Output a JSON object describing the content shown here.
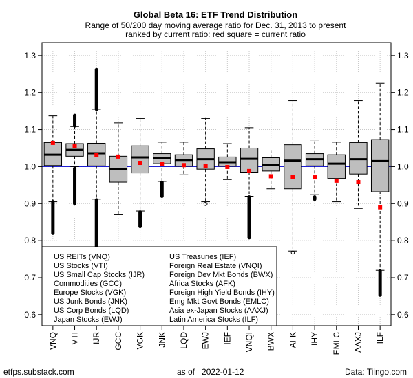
{
  "chart_data": {
    "type": "box",
    "title": "Global Beta 16: ETF Trend Distribution",
    "subtitle_lines": [
      "Range of 50/200 day moving average ratio for Dec. 31, 2013 to present",
      "ranked by current ratio: red square = current ratio"
    ],
    "categories": [
      "VNQ",
      "VTI",
      "IJR",
      "GCC",
      "VGK",
      "JNK",
      "LQD",
      "EWJ",
      "IEF",
      "VNQI",
      "BWX",
      "AFK",
      "IHY",
      "EMLC",
      "AAXJ",
      "ILF"
    ],
    "boxes": [
      {
        "whisker_low": 0.905,
        "q1": 1.003,
        "median": 1.032,
        "q3": 1.065,
        "whisker_high": 1.137,
        "outliers_low": [
          0.82,
          0.905
        ],
        "outliers_high": [],
        "current": 1.064
      },
      {
        "whisker_low": 1.0,
        "q1": 1.028,
        "median": 1.045,
        "q3": 1.062,
        "whisker_high": 1.108,
        "outliers_low": [
          0.9,
          0.995
        ],
        "outliers_high": [
          1.11,
          1.138
        ],
        "current": 1.055
      },
      {
        "whisker_low": 0.912,
        "q1": 1.002,
        "median": 1.036,
        "q3": 1.063,
        "whisker_high": 1.155,
        "outliers_low": [
          0.78,
          0.91
        ],
        "outliers_high": [
          1.155,
          1.262
        ],
        "current": 1.031
      },
      {
        "whisker_low": 0.87,
        "q1": 0.958,
        "median": 0.993,
        "q3": 1.028,
        "whisker_high": 1.118,
        "outliers_low": [],
        "outliers_high": [],
        "current": 1.027
      },
      {
        "whisker_low": 0.88,
        "q1": 0.983,
        "median": 1.025,
        "q3": 1.056,
        "whisker_high": 1.13,
        "outliers_low": [
          0.838,
          0.877
        ],
        "outliers_high": [],
        "current": 1.01
      },
      {
        "whisker_low": 0.96,
        "q1": 1.008,
        "median": 1.023,
        "q3": 1.035,
        "whisker_high": 1.066,
        "outliers_low": [
          0.92,
          0.957
        ],
        "outliers_high": [],
        "current": 1.007
      },
      {
        "whisker_low": 0.978,
        "q1": 1.001,
        "median": 1.018,
        "q3": 1.032,
        "whisker_high": 1.066,
        "outliers_low": [],
        "outliers_high": [],
        "current": 1.004
      },
      {
        "whisker_low": 0.905,
        "q1": 0.993,
        "median": 1.02,
        "q3": 1.048,
        "whisker_high": 1.13,
        "outliers_low": [
          0.899
        ],
        "outliers_high": [],
        "current": 1.001
      },
      {
        "whisker_low": 0.965,
        "q1": 1.001,
        "median": 1.012,
        "q3": 1.026,
        "whisker_high": 1.062,
        "outliers_low": [],
        "outliers_high": [],
        "current": 0.999
      },
      {
        "whisker_low": 0.92,
        "q1": 0.985,
        "median": 1.021,
        "q3": 1.05,
        "whisker_high": 1.105,
        "outliers_low": [
          0.808,
          0.918
        ],
        "outliers_high": [],
        "current": 0.988
      },
      {
        "whisker_low": 0.94,
        "q1": 0.988,
        "median": 1.005,
        "q3": 1.024,
        "whisker_high": 1.05,
        "outliers_low": [],
        "outliers_high": [],
        "current": 0.974
      },
      {
        "whisker_low": 0.772,
        "q1": 0.94,
        "median": 1.016,
        "q3": 1.059,
        "whisker_high": 1.178,
        "outliers_low": [
          0.768
        ],
        "outliers_high": [],
        "current": 0.972
      },
      {
        "whisker_low": 0.925,
        "q1": 1.002,
        "median": 1.02,
        "q3": 1.035,
        "whisker_high": 1.072,
        "outliers_low": [
          0.912,
          0.918
        ],
        "outliers_high": [],
        "current": 0.971
      },
      {
        "whisker_low": 0.905,
        "q1": 0.968,
        "median": 1.008,
        "q3": 1.032,
        "whisker_high": 1.066,
        "outliers_low": [],
        "outliers_high": [],
        "current": 0.962
      },
      {
        "whisker_low": 0.887,
        "q1": 0.98,
        "median": 1.02,
        "q3": 1.065,
        "whisker_high": 1.178,
        "outliers_low": [],
        "outliers_high": [],
        "current": 0.958
      },
      {
        "whisker_low": 0.72,
        "q1": 0.932,
        "median": 1.015,
        "q3": 1.073,
        "whisker_high": 1.225,
        "outliers_low": [
          0.653,
          0.718
        ],
        "outliers_high": [],
        "current": 0.89
      }
    ],
    "y_ticks": [
      0.6,
      0.7,
      0.8,
      0.9,
      1.0,
      1.1,
      1.2,
      1.3
    ],
    "y_tick_labels": [
      "0.6",
      "0.7",
      "0.8",
      "0.9",
      "1.0",
      "1.1",
      "1.2",
      "1.3"
    ],
    "ylim": [
      0.57,
      1.335
    ],
    "reference_line": 1.0,
    "grid": true,
    "legend_position": "bottom-left",
    "legend_left": [
      "US REITs (VNQ)",
      "US Stocks (VTI)",
      "US Small Cap Stocks (IJR)",
      "Commodities (GCC)",
      "Europe Stocks (VGK)",
      "US Junk Bonds (JNK)",
      "US Corp Bonds (LQD)",
      "Japan Stocks (EWJ)"
    ],
    "legend_right": [
      "US Treasuries (IEF)",
      "Foreign Real Estate (VNQI)",
      "Foreign Dev Mkt Bonds (BWX)",
      "Africa Stocks (AFK)",
      "Foreign High Yield Bonds (IHY)",
      "Emg Mkt Govt Bonds (EMLC)",
      "Asia ex-Japan Stocks (AAXJ)",
      "Latin America Stocks (ILF)"
    ],
    "colors": {
      "box_fill": "#bebebe",
      "current_marker": "#ff0000",
      "reference_line": "#0000cd",
      "grid": "#c8c8c8"
    }
  },
  "footer": {
    "left": "etfps.substack.com",
    "center": "as of   2022-01-12",
    "right": "Data: Tiingo.com"
  }
}
